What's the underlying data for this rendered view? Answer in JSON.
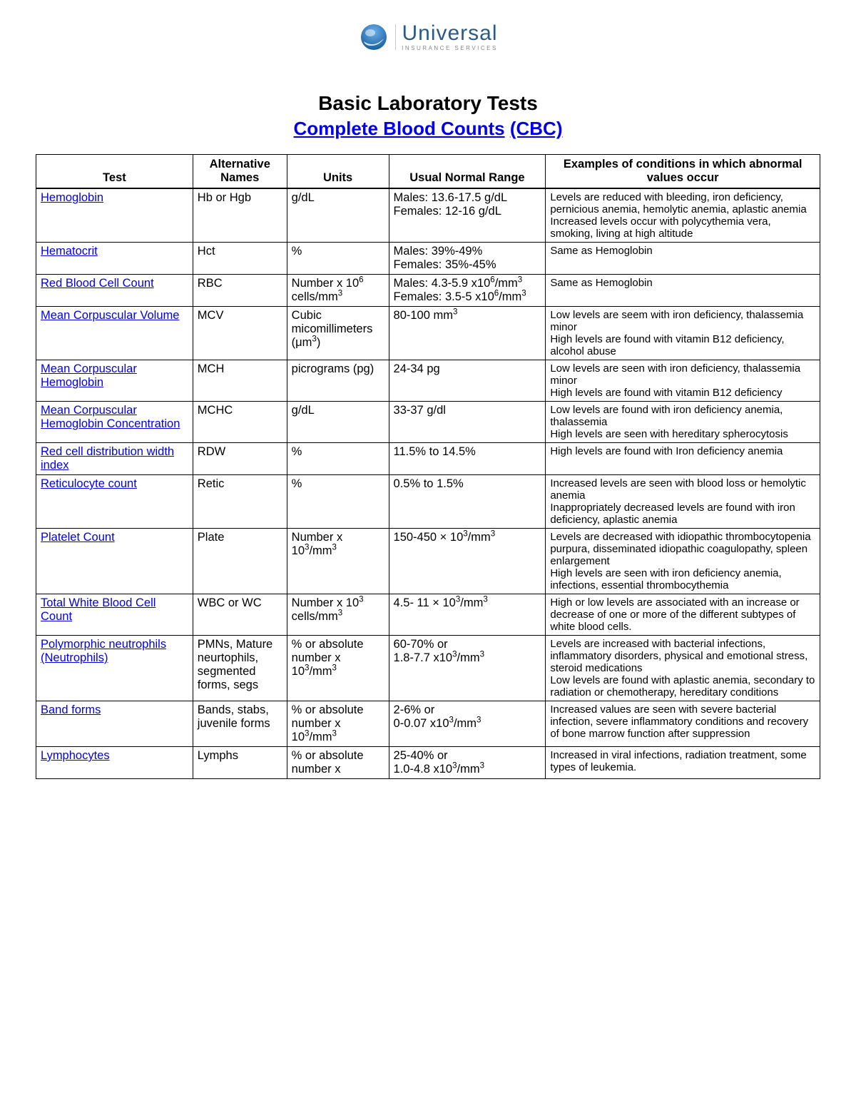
{
  "logo": {
    "main": "Universal",
    "sub": "INSURANCE SERVICES"
  },
  "titles": {
    "main": "Basic Laboratory Tests",
    "sub_link": "Complete Blood Counts",
    "sub_paren": "(CBC)"
  },
  "table": {
    "headers": {
      "test": "Test",
      "alt": "Alternative Names",
      "units": "Units",
      "range": "Usual Normal Range",
      "cond": "Examples of conditions in which abnormal values occur"
    },
    "rows": [
      {
        "test": "Hemoglobin",
        "alt": "Hb or Hgb",
        "units": "g/dL",
        "range": "Males: 13.6-17.5 g/dL<br>Females: 12-16 g/dL",
        "cond": "Levels are reduced with bleeding, iron deficiency, pernicious anemia, hemolytic anemia, aplastic anemia<br>Increased levels occur with polycythemia vera, smoking, living at high altitude"
      },
      {
        "test": "Hematocrit",
        "alt": "Hct",
        "units": "%",
        "range": "Males: 39%-49%<br>Females: 35%-45%",
        "cond": "Same as Hemoglobin"
      },
      {
        "test": "Red Blood Cell Count",
        "alt": "RBC",
        "units": "Number x 10<sup>6</sup> cells/mm<sup>3</sup>",
        "range": "Males: 4.3-5.9 x10<sup>6</sup>/mm<sup>3</sup><br>Females: 3.5-5 x10<sup>6</sup>/mm<sup>3</sup>",
        "cond": "Same as Hemoglobin"
      },
      {
        "test": "Mean Corpuscular Volume",
        "alt": "MCV",
        "units": "Cubic micomillimeters (&mu;m<sup>3</sup>)",
        "range": "80-100 mm<sup>3</sup>",
        "cond": "Low levels are seem with iron deficiency, thalassemia minor<br>High levels are found with vitamin B12 deficiency, alcohol abuse"
      },
      {
        "test": "Mean Corpuscular Hemoglobin",
        "alt": "MCH",
        "units": "picrograms (pg)",
        "range": "24-34 pg",
        "cond": "Low levels are seen  with iron deficiency, thalassemia minor<br>High levels are found  with vitamin B12 deficiency"
      },
      {
        "test": "Mean Corpuscular Hemoglobin Concentration",
        "alt": "MCHC",
        "units": "g/dL",
        "range": "33-37 g/dl",
        "cond": "Low levels are found with  iron deficiency anemia, thalassemia<br>High levels are seen with hereditary spherocytosis"
      },
      {
        "test": "Red cell distribution width index",
        "alt": "RDW",
        "units": "%",
        "range": "11.5% to 14.5%",
        "cond": "High levels are found with Iron deficiency anemia"
      },
      {
        "test": "Reticulocyte count",
        "alt": "Retic",
        "units": "%",
        "range": "0.5% to 1.5%",
        "cond": "Increased levels are seen with blood loss or hemolytic anemia<br>Inappropriately decreased levels are found with iron deficiency, aplastic anemia"
      },
      {
        "test": "Platelet Count",
        "alt": "Plate",
        "units": "Number x 10<sup>3</sup>/mm<sup>3</sup>",
        "range": "150-450 &times; 10<sup>3</sup>/mm<sup>3</sup>",
        "cond": "Levels are decreased with idiopathic thrombocytopenia purpura, disseminated idiopathic coagulopathy, spleen enlargement<br>High levels are seen with iron deficiency anemia, infections, essential thrombocythemia"
      },
      {
        "test": "Total White Blood Cell Count",
        "alt": "WBC or WC",
        "units": "Number x 10<sup>3</sup> cells/mm<sup>3</sup>",
        "range": "4.5- 11 &times; 10<sup>3</sup>/mm<sup>3</sup>",
        "cond": "High or low levels are associated with an increase or decrease of one or more of the different subtypes of white blood cells."
      },
      {
        "test": "Polymorphic neutrophils (Neutrophils)",
        "alt": "PMNs, Mature neurtophils, segmented forms, segs",
        "units": "%  or absolute number x 10<sup>3</sup>/mm<sup>3</sup>",
        "range": "60-70% or<br>1.8-7.7 x10<sup>3</sup>/mm<sup>3</sup>",
        "cond": "Levels are increased with bacterial infections, inflammatory disorders, physical and emotional stress, steroid medications<br>Low levels are found with aplastic anemia, secondary to radiation or chemotherapy, hereditary conditions"
      },
      {
        "test": "Band forms",
        "alt": "Bands, stabs, juvenile forms",
        "units": "%  or absolute number x 10<sup>3</sup>/mm<sup>3</sup>",
        "range": "2-6% or<br>0-0.07 x10<sup>3</sup>/mm<sup>3</sup>",
        "cond": "Increased values are seen with severe bacterial infection, severe inflammatory conditions and recovery of bone marrow function after suppression"
      },
      {
        "test": "Lymphocytes",
        "alt": "Lymphs",
        "units": "%  or absolute number x",
        "range": "25-40% or<br>1.0-4.8 x10<sup>3</sup>/mm<sup>3</sup>",
        "cond": "Increased in viral infections, radiation treatment, some types of leukemia."
      }
    ]
  }
}
